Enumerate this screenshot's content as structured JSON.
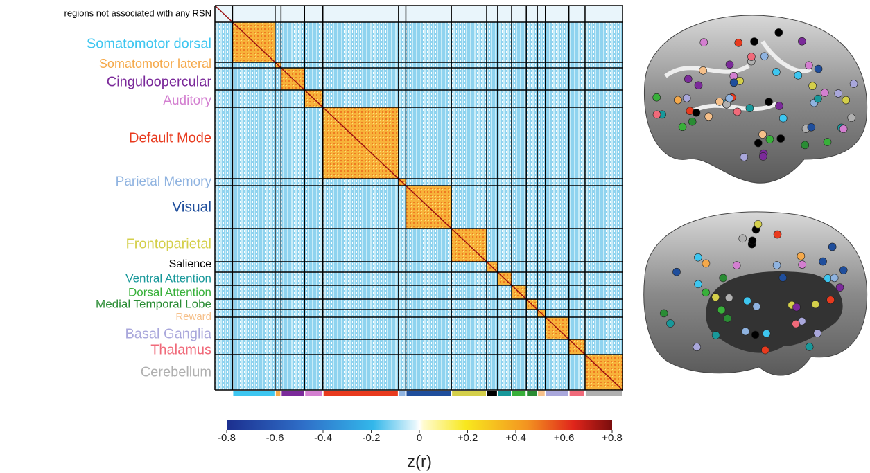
{
  "figure": {
    "networks": [
      {
        "label": "regions not associated with any RSN",
        "color": "#000000"
      },
      {
        "label": "Somatomotor dorsal",
        "color": "#3ec6f0"
      },
      {
        "label": "Somatomotor lateral",
        "color": "#f5a94a"
      },
      {
        "label": "Cinguloopercular",
        "color": "#7b2a9a"
      },
      {
        "label": "Auditory",
        "color": "#d37fd0"
      },
      {
        "label": "Default Mode",
        "color": "#e83a1e"
      },
      {
        "label": "Parietal Memory",
        "color": "#8fb3e0"
      },
      {
        "label": "Visual",
        "color": "#1f4e9c"
      },
      {
        "label": "Frontoparietal",
        "color": "#d4cf4a"
      },
      {
        "label": "Salience",
        "color": "#000000"
      },
      {
        "label": "Ventral Attention",
        "color": "#18989a"
      },
      {
        "label": "Dorsal Attention",
        "color": "#38b03a"
      },
      {
        "label": "Medial Temporal Lobe",
        "color": "#2a8c34"
      },
      {
        "label": "Reward",
        "color": "#f6c08a"
      },
      {
        "label": "Basal Ganglia",
        "color": "#a9a7db"
      },
      {
        "label": "Thalamus",
        "color": "#f06a7a"
      },
      {
        "label": "Cerebellum",
        "color": "#b0b0b0"
      }
    ],
    "colorbar": {
      "ticks": [
        -0.8,
        -0.6,
        -0.4,
        -0.2,
        0,
        {
          "value": 0.2,
          "label": "+0.2"
        },
        {
          "value": 0.4,
          "label": "+0.4"
        },
        {
          "value": 0.6,
          "label": "+0.6"
        },
        {
          "value": 0.8,
          "label": "+0.8"
        }
      ],
      "label": "z(r)"
    }
  }
}
